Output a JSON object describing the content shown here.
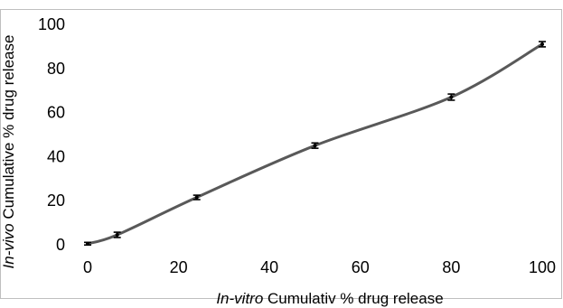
{
  "chart_data": {
    "type": "line",
    "title": "",
    "xlabel_italic": "In-vitro",
    "xlabel_rest": " Cumulativ % drug release",
    "ylabel_italic": "In-vivo",
    "ylabel_rest": " Cumulative % drug release",
    "xlim": [
      0,
      100
    ],
    "ylim": [
      0,
      100
    ],
    "xticks": [
      0,
      20,
      40,
      60,
      80,
      100
    ],
    "yticks": [
      0,
      20,
      40,
      60,
      80,
      100
    ],
    "grid": false,
    "legend": "none",
    "line_color": "#595959",
    "errorbar_color": "#000000",
    "series": [
      {
        "x": [
          0,
          6.5,
          24,
          50,
          80,
          100
        ],
        "y": [
          0.5,
          4.5,
          21.5,
          45,
          67,
          91
        ],
        "err": [
          0.6,
          1.2,
          1.0,
          1.2,
          1.4,
          1.2
        ]
      }
    ]
  }
}
